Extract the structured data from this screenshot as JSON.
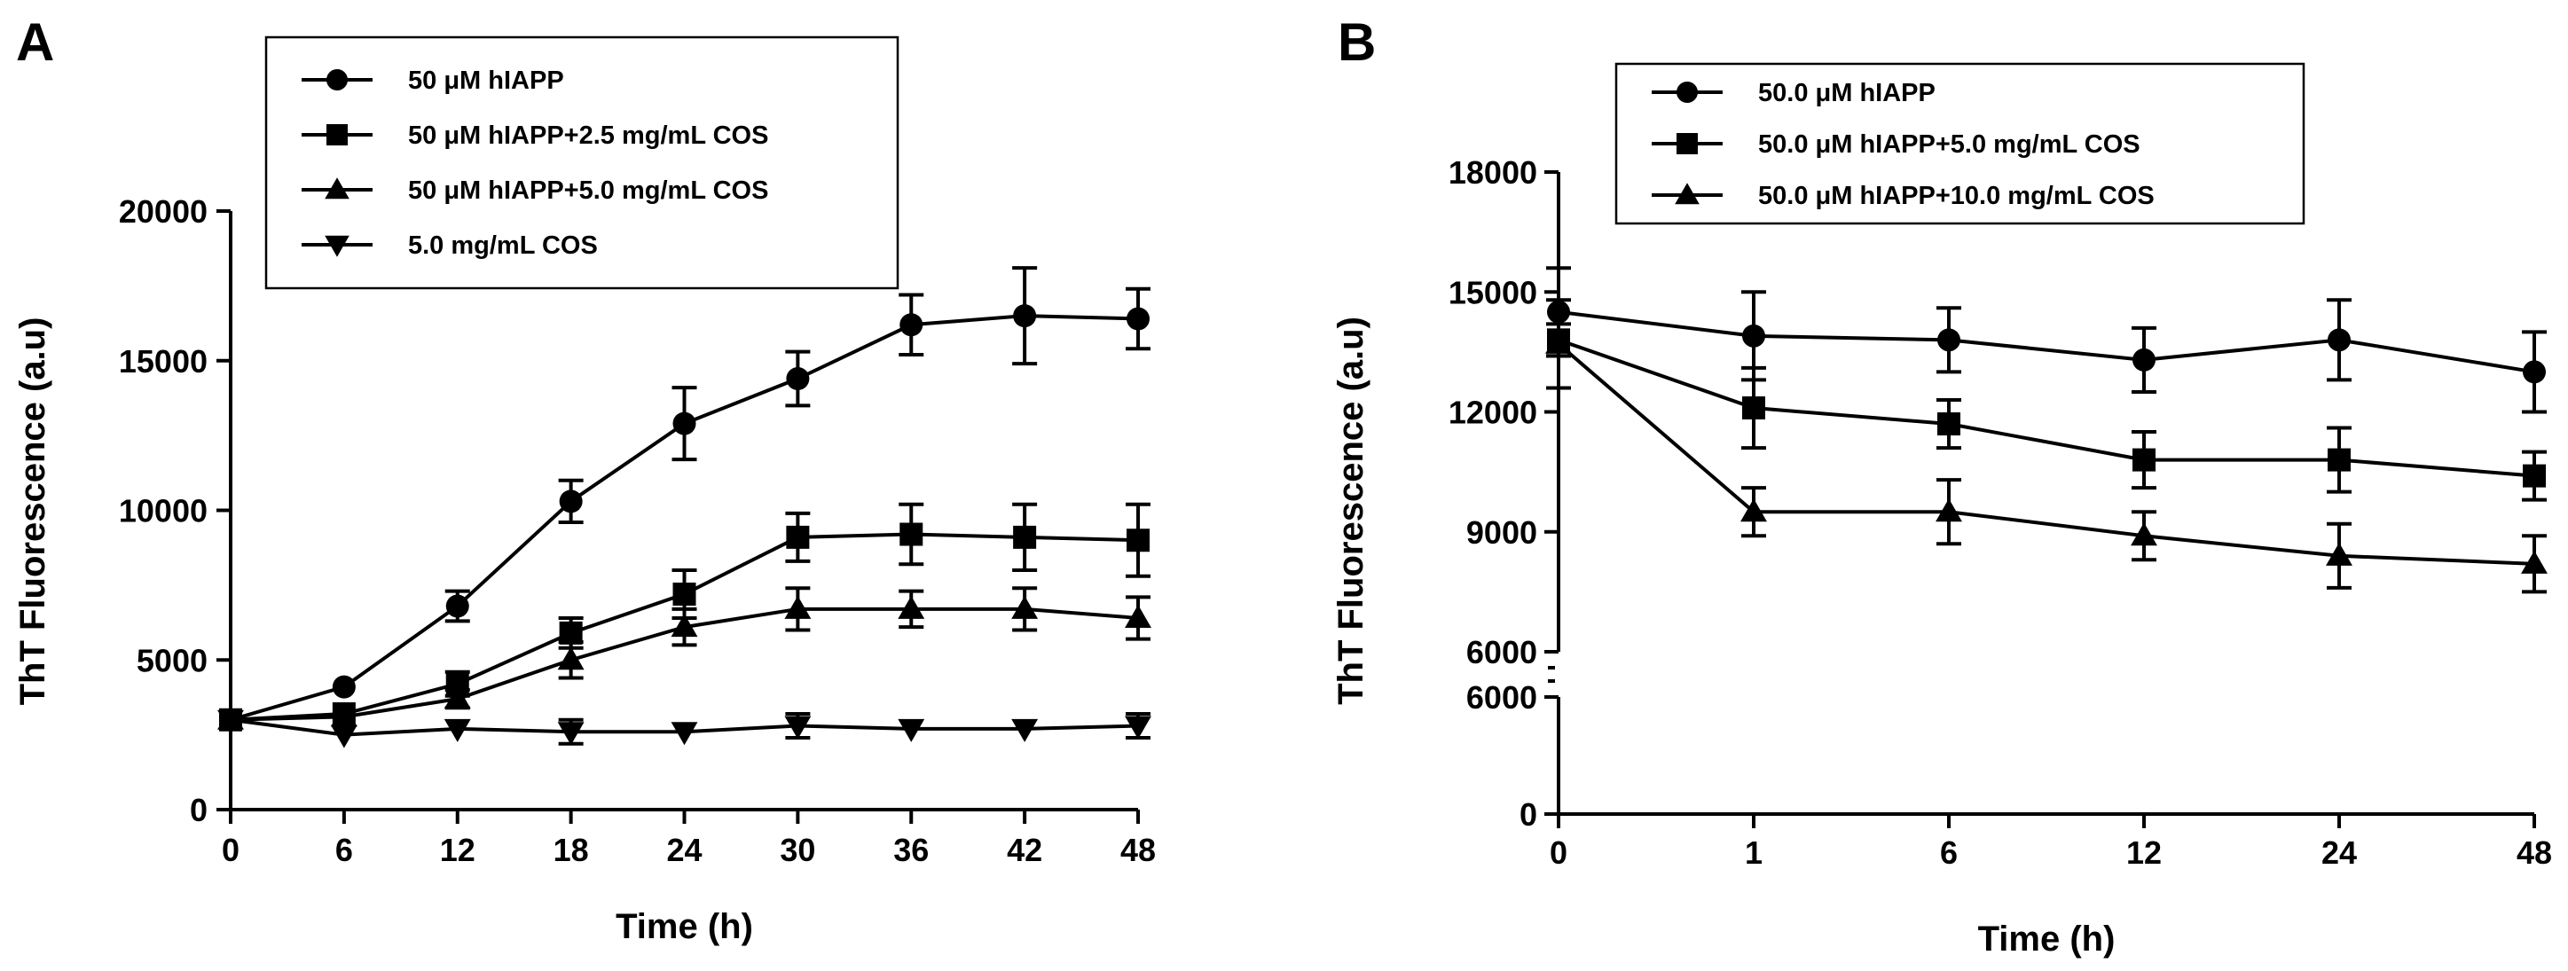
{
  "chart_data": [
    {
      "panel": "A",
      "type": "line",
      "xlabel": "Time (h)",
      "ylabel": "ThT Fluorescence (a.u)",
      "x_ticks": [
        "0",
        "6",
        "12",
        "18",
        "24",
        "30",
        "36",
        "42",
        "48"
      ],
      "x": [
        0,
        6,
        12,
        18,
        24,
        30,
        36,
        42,
        48
      ],
      "ylim": [
        0,
        20000
      ],
      "y_ticks": [
        0,
        5000,
        10000,
        15000,
        20000
      ],
      "y_tick_labels": [
        "0",
        "5000",
        "10000",
        "15000",
        "20000"
      ],
      "legend_position": "top-left inside",
      "series": [
        {
          "name": "50 μM hIAPP",
          "marker": "circle",
          "values": [
            3000,
            4100,
            6800,
            10300,
            12900,
            14400,
            16200,
            16500,
            16400
          ],
          "errors": [
            0,
            0,
            500,
            700,
            1200,
            900,
            1000,
            1600,
            1000
          ]
        },
        {
          "name": "50 μM hIAPP+2.5 mg/mL COS",
          "marker": "square",
          "values": [
            3000,
            3200,
            4200,
            5900,
            7200,
            9100,
            9200,
            9100,
            9000
          ],
          "errors": [
            0,
            0,
            400,
            500,
            800,
            800,
            1000,
            1100,
            1200
          ]
        },
        {
          "name": "50 μM hIAPP+5.0 mg/mL COS",
          "marker": "triangle-up",
          "values": [
            3000,
            3100,
            3700,
            5000,
            6100,
            6700,
            6700,
            6700,
            6400
          ],
          "errors": [
            0,
            0,
            300,
            600,
            600,
            700,
            600,
            700,
            700
          ]
        },
        {
          "name": "5.0 mg/mL COS",
          "marker": "triangle-down",
          "values": [
            3000,
            2500,
            2700,
            2600,
            2600,
            2800,
            2700,
            2700,
            2800
          ],
          "errors": [
            0,
            0,
            0,
            400,
            0,
            400,
            0,
            0,
            400
          ]
        }
      ]
    },
    {
      "panel": "B",
      "type": "line",
      "xlabel": "Time (h)",
      "ylabel": "ThT Fluorescence (a.u)",
      "x_ticks": [
        "0",
        "1",
        "6",
        "12",
        "24",
        "48"
      ],
      "x_spacing": "categorical",
      "broken_y_axis": {
        "lower": [
          0,
          6000
        ],
        "upper": [
          6000,
          18000
        ]
      },
      "y_ticks_lower": [
        0,
        6000
      ],
      "y_tick_labels_lower": [
        "0",
        "6000"
      ],
      "y_ticks_upper": [
        6000,
        9000,
        12000,
        15000,
        18000
      ],
      "y_tick_labels_upper": [
        "6000",
        "9000",
        "12000",
        "15000",
        "18000"
      ],
      "legend_position": "top inside",
      "series": [
        {
          "name": "50.0 μM hIAPP",
          "marker": "circle",
          "values": [
            14500,
            13900,
            13800,
            13300,
            13800,
            13000
          ],
          "errors": [
            1100,
            1100,
            800,
            800,
            1000,
            1000
          ]
        },
        {
          "name": "50.0 μM hIAPP+5.0 mg/mL COS",
          "marker": "square",
          "values": [
            13800,
            12100,
            11700,
            10800,
            10800,
            10400
          ],
          "errors": [
            400,
            1000,
            600,
            700,
            800,
            600
          ]
        },
        {
          "name": "50.0 μM hIAPP+10.0 mg/mL COS",
          "marker": "triangle-up",
          "values": [
            13700,
            9500,
            9500,
            8900,
            8400,
            8200
          ],
          "errors": [
            1100,
            600,
            800,
            600,
            800,
            700
          ]
        }
      ]
    }
  ]
}
